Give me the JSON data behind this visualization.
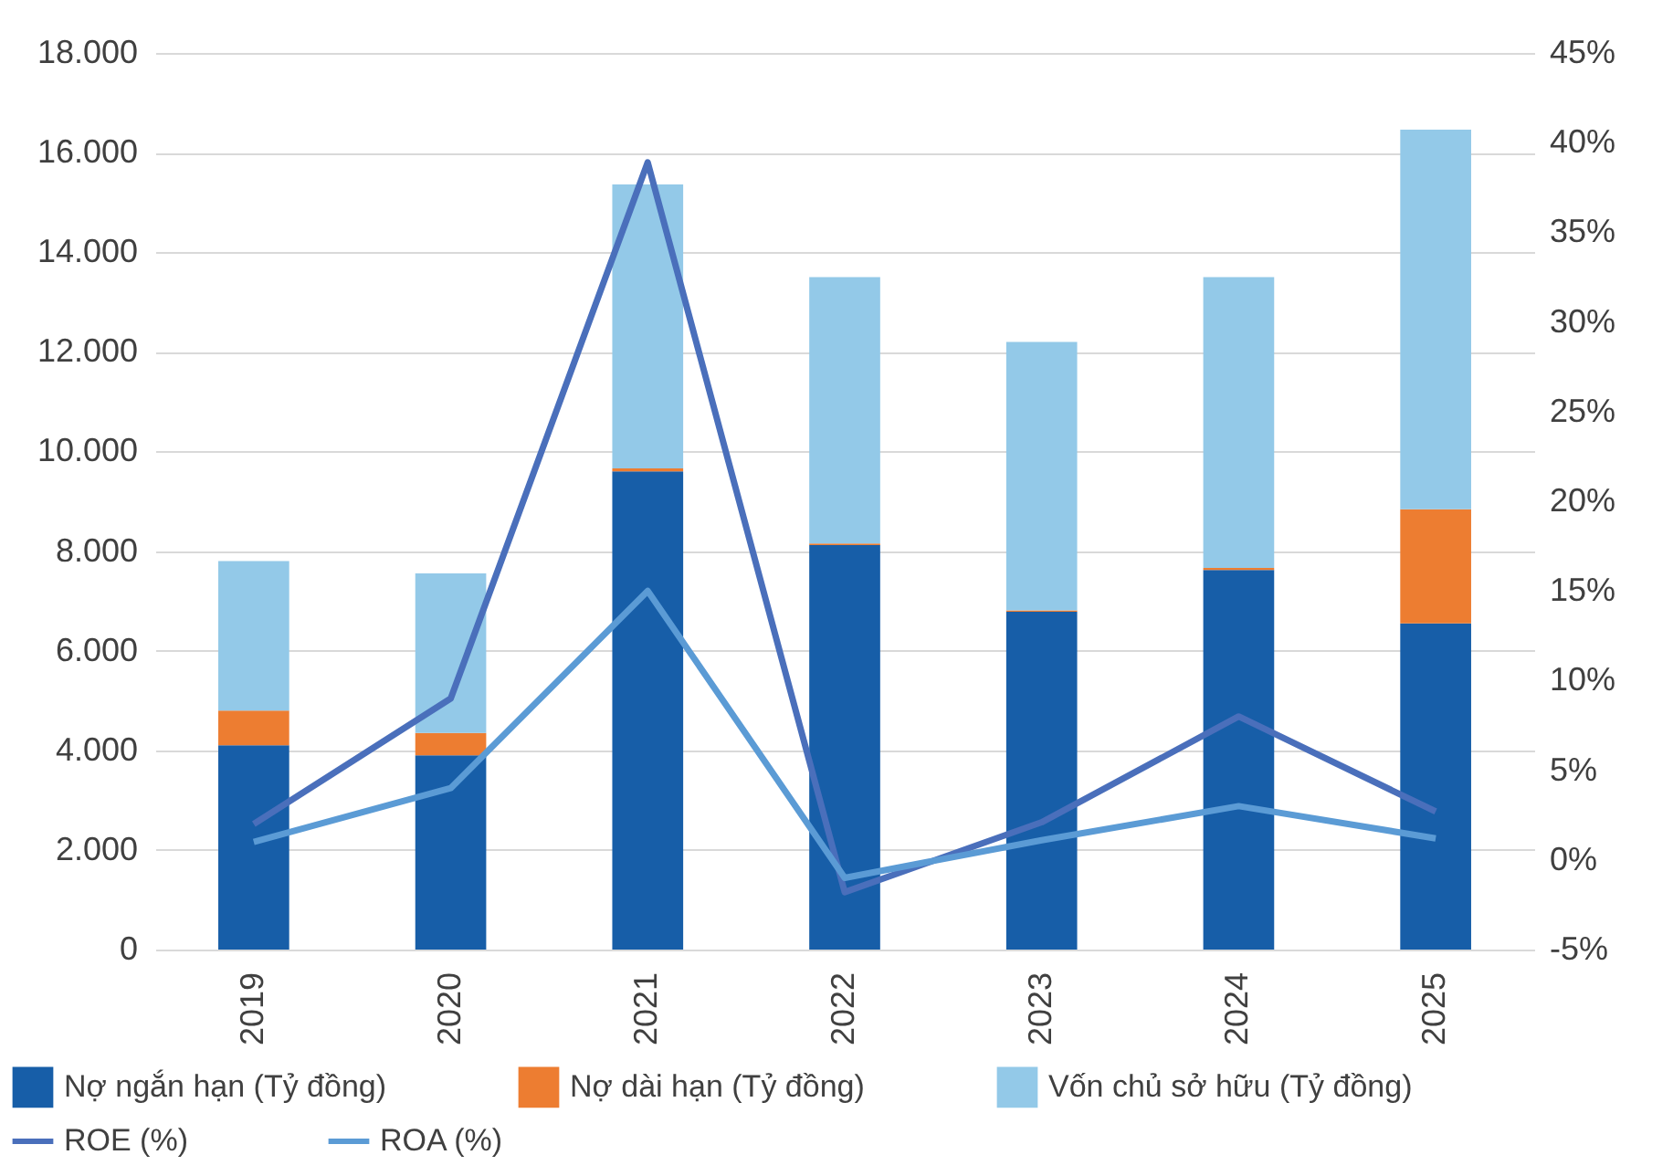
{
  "chart_data": {
    "type": "bar",
    "stacked": true,
    "categories": [
      "2019",
      "2020",
      "2021",
      "2022",
      "2023",
      "2024",
      "2025"
    ],
    "series": [
      {
        "name": "Nợ ngắn hạn (Tỷ đồng)",
        "color": "#175ea8",
        "values": [
          4100,
          3900,
          9600,
          8120,
          6780,
          7620,
          6550
        ]
      },
      {
        "name": "Nợ dài hạn (Tỷ đồng)",
        "color": "#ed7d31",
        "values": [
          700,
          450,
          60,
          30,
          30,
          40,
          2290
        ]
      },
      {
        "name": "Vốn chủ sở hữu (Tỷ đồng)",
        "color": "#93c9e8",
        "values": [
          3000,
          3200,
          5700,
          5350,
          5390,
          5840,
          7620
        ]
      },
      {
        "name": "ROE (%)",
        "type": "line",
        "axis": "y2",
        "color": "#4a6fbb",
        "values": [
          2.0,
          9.0,
          38.9,
          -1.8,
          2.1,
          8.0,
          2.7
        ]
      },
      {
        "name": "ROA (%)",
        "type": "line",
        "axis": "y2",
        "color": "#5b9bd5",
        "values": [
          1.0,
          4.0,
          15.0,
          -1.0,
          1.1,
          3.0,
          1.2
        ]
      }
    ],
    "ylim": [
      0,
      18000
    ],
    "yticks": [
      0,
      {
        "value": 2000,
        "label": "2.000"
      },
      {
        "value": 4000,
        "label": "4.000"
      },
      {
        "value": 6000,
        "label": "6.000"
      },
      {
        "value": 8000,
        "label": "8.000"
      },
      {
        "value": 10000,
        "label": "10.000"
      },
      {
        "value": 12000,
        "label": "12.000"
      },
      {
        "value": 14000,
        "label": "14.000"
      },
      {
        "value": 16000,
        "label": "16.000"
      },
      {
        "value": 18000,
        "label": "18.000"
      }
    ],
    "y2lim": [
      -5,
      45
    ],
    "y2ticks": [
      {
        "value": -5,
        "label": "-5%"
      },
      {
        "value": 0,
        "label": "0%"
      },
      {
        "value": 5,
        "label": "5%"
      },
      {
        "value": 10,
        "label": "10%"
      },
      {
        "value": 15,
        "label": "15%"
      },
      {
        "value": 20,
        "label": "20%"
      },
      {
        "value": 25,
        "label": "25%"
      },
      {
        "value": 30,
        "label": "30%"
      },
      {
        "value": 35,
        "label": "35%"
      },
      {
        "value": 40,
        "label": "40%"
      },
      {
        "value": 45,
        "label": "45%"
      }
    ],
    "grid": "y",
    "legend": "bottom",
    "marker": "none",
    "line_style": "solid"
  }
}
